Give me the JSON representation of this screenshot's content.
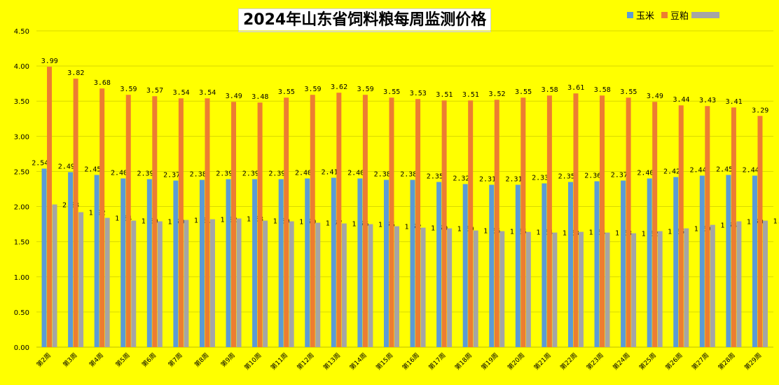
{
  "chart_data": {
    "type": "bar",
    "title": "2024年山东省饲料粮每周监测价格",
    "categories": [
      "第2周",
      "第3周",
      "第4周",
      "第5周",
      "第6周",
      "第7周",
      "第8周",
      "第9周",
      "第10周",
      "第11周",
      "第12周",
      "第13周",
      "第14周",
      "第15周",
      "第16周",
      "第17周",
      "第18周",
      "第19周",
      "第20周",
      "第21周",
      "第22周",
      "第23周",
      "第24周",
      "第25周",
      "第26周",
      "第27周",
      "第28周",
      "第29周"
    ],
    "series": [
      {
        "name": "玉米",
        "color": "#5b9bd5",
        "values": [
          2.54,
          2.49,
          2.45,
          2.4,
          2.39,
          2.37,
          2.38,
          2.39,
          2.39,
          2.39,
          2.4,
          2.41,
          2.4,
          2.38,
          2.38,
          2.35,
          2.32,
          2.31,
          2.31,
          2.33,
          2.35,
          2.36,
          2.37,
          2.4,
          2.42,
          2.44,
          2.45,
          2.44
        ]
      },
      {
        "name": "豆粕",
        "color": "#ed7d31",
        "values": [
          3.99,
          3.82,
          3.68,
          3.59,
          3.57,
          3.54,
          3.54,
          3.49,
          3.48,
          3.55,
          3.59,
          3.62,
          3.59,
          3.55,
          3.53,
          3.51,
          3.51,
          3.52,
          3.55,
          3.58,
          3.61,
          3.58,
          3.55,
          3.49,
          3.44,
          3.43,
          3.41,
          3.29
        ]
      },
      {
        "name": "",
        "color": "#a5a5a5",
        "values": [
          2.03,
          1.92,
          1.84,
          1.8,
          1.79,
          1.81,
          1.82,
          1.83,
          1.8,
          1.79,
          1.77,
          1.76,
          1.75,
          1.72,
          1.7,
          1.69,
          1.66,
          1.65,
          1.64,
          1.63,
          1.64,
          1.63,
          1.62,
          1.65,
          1.69,
          1.74,
          1.79,
          1.8
        ]
      }
    ],
    "ylim": [
      0,
      4.5
    ],
    "yticks": [
      "0.00",
      "0.50",
      "1.00",
      "1.50",
      "2.00",
      "2.50",
      "3.00",
      "3.50",
      "4.00",
      "4.50"
    ],
    "grid": true,
    "legend_position": "top-right",
    "background": "#ffff00"
  }
}
